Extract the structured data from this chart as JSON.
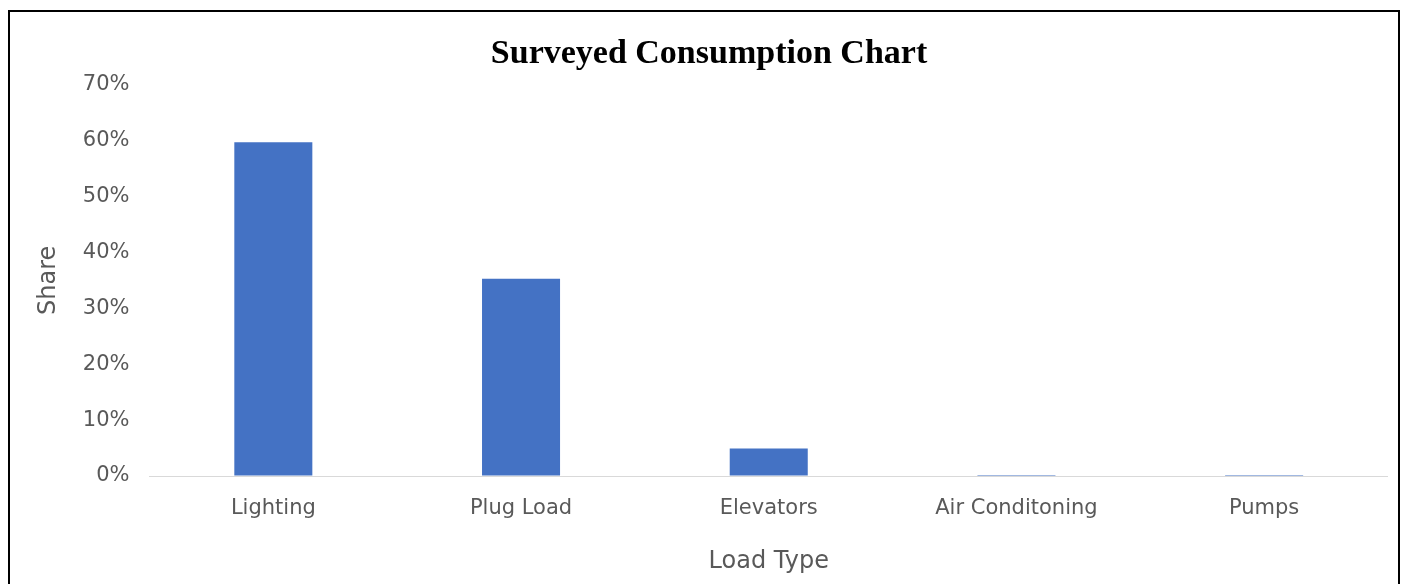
{
  "chart_data": {
    "type": "bar",
    "title": "Surveyed Consumption Chart",
    "xlabel": "Load Type",
    "ylabel": "Share",
    "categories": [
      "Lighting",
      "Plug Load",
      "Elevators",
      "Air Conditoning",
      "Pumps"
    ],
    "values": [
      59.7,
      35.3,
      4.9,
      0.2,
      0.2
    ],
    "color": "#4472c4",
    "ylim": [
      0,
      70
    ],
    "yticks": [
      {
        "value": 0,
        "label": "0%"
      },
      {
        "value": 10,
        "label": "10%"
      },
      {
        "value": 20,
        "label": "20%"
      },
      {
        "value": 30,
        "label": "30%"
      },
      {
        "value": 40,
        "label": "40%"
      },
      {
        "value": 50,
        "label": "50%"
      },
      {
        "value": 60,
        "label": "60%"
      },
      {
        "value": 70,
        "label": "70%"
      }
    ],
    "grid": false,
    "legend": false
  }
}
